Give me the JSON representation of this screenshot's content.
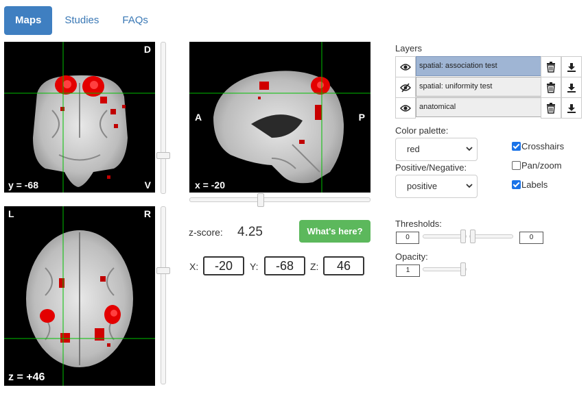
{
  "tabs": [
    {
      "label": "Maps",
      "active": true
    },
    {
      "label": "Studies",
      "active": false
    },
    {
      "label": "FAQs",
      "active": false
    }
  ],
  "views": {
    "coronal": {
      "top_right": "D",
      "bottom_left": "y = -68",
      "bottom_right": "V"
    },
    "sagittal": {
      "left": "A",
      "right": "P",
      "bottom_left": "x = -20"
    },
    "axial": {
      "top_left": "L",
      "top_right": "R",
      "bottom_left": "z = +46"
    }
  },
  "zscore": {
    "label": "z-score:",
    "value": "4.25"
  },
  "whats_here": "What's here?",
  "coords": {
    "x_label": "X:",
    "x": "-20",
    "y_label": "Y:",
    "y": "-68",
    "z_label": "Z:",
    "z": "46"
  },
  "layers": {
    "title": "Layers",
    "items": [
      {
        "name": "spatial: association test",
        "visible": true,
        "selected": true
      },
      {
        "name": "spatial: uniformity test",
        "visible": false,
        "selected": false
      },
      {
        "name": "anatomical",
        "visible": true,
        "selected": false
      }
    ]
  },
  "color_palette": {
    "label": "Color palette:",
    "value": "red"
  },
  "posneg": {
    "label": "Positive/Negative:",
    "value": "positive"
  },
  "options": [
    {
      "label": "Crosshairs",
      "checked": true
    },
    {
      "label": "Pan/zoom",
      "checked": false
    },
    {
      "label": "Labels",
      "checked": true
    }
  ],
  "thresholds": {
    "label": "Thresholds:",
    "min": "0",
    "max": "0"
  },
  "opacity": {
    "label": "Opacity:",
    "value": "1"
  },
  "colors": {
    "tab_active": "#3f7fc1",
    "button_green": "#5cb85c",
    "crosshair": "#00c000",
    "blob": "#e00000"
  }
}
